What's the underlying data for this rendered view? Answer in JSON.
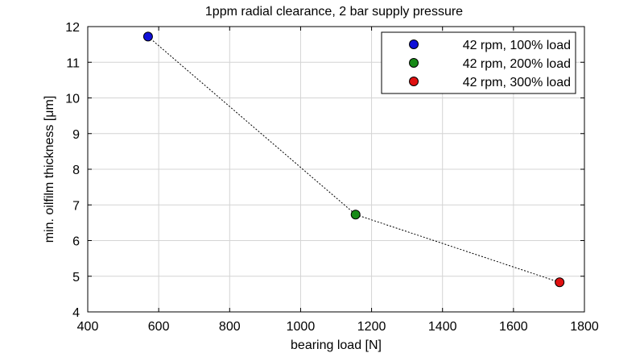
{
  "chart_data": {
    "type": "scatter",
    "title": "1ppm radial clearance, 2 bar supply pressure",
    "xlabel": "bearing load [N]",
    "ylabel": "min. oilfilm thickness [μm]",
    "xlim": [
      400,
      1800
    ],
    "ylim": [
      4,
      12
    ],
    "xticks": [
      400,
      600,
      800,
      1000,
      1200,
      1400,
      1600,
      1800
    ],
    "yticks": [
      4,
      5,
      6,
      7,
      8,
      9,
      10,
      11,
      12
    ],
    "grid": true,
    "legend_position": "top-right",
    "connector_line": {
      "style": "dotted",
      "color": "#000000"
    },
    "series": [
      {
        "name": "42 rpm, 100% load",
        "x": 570,
        "y": 11.72,
        "color": "#1010d8"
      },
      {
        "name": "42 rpm, 200% load",
        "x": 1155,
        "y": 6.73,
        "color": "#178a17"
      },
      {
        "name": "42 rpm, 300% load",
        "x": 1730,
        "y": 4.83,
        "color": "#e01010"
      }
    ]
  }
}
